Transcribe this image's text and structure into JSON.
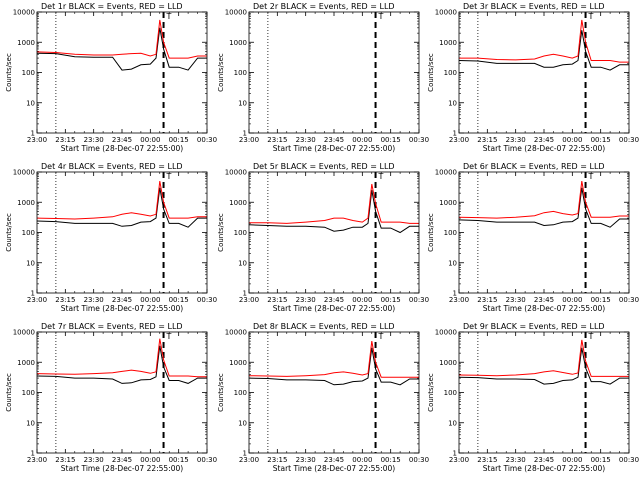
{
  "chart_data": [
    {
      "type": "line",
      "title": "Det 1r BLACK = Events, RED = LLD",
      "xlabel": "Start Time (28-Dec-07 22:55:00)",
      "ylabel": "Counts/sec",
      "yscale": "log",
      "ylim": [
        1,
        10000
      ],
      "xlim": [
        "23:00",
        "00:30"
      ],
      "xtick_labels": [
        "23:00",
        "23:15",
        "23:30",
        "23:45",
        "00:00",
        "00:15",
        "00:30"
      ],
      "ytick_labels": [
        "1",
        "10",
        "100",
        "1000",
        "10000"
      ],
      "grid": false,
      "vlines": [
        {
          "x": "23:10",
          "style": "dotted"
        },
        {
          "x": "00:07",
          "style": "dashed"
        }
      ],
      "marker_text": "T",
      "x": [
        "23:00",
        "23:10",
        "23:20",
        "23:30",
        "23:40",
        "23:45",
        "23:50",
        "23:55",
        "00:00",
        "00:03",
        "00:05",
        "00:07",
        "00:10",
        "00:15",
        "00:20",
        "00:25",
        "00:30"
      ],
      "series": [
        {
          "name": "BLACK = Events",
          "color": "#000000",
          "values": [
            430,
            420,
            330,
            320,
            320,
            120,
            130,
            180,
            190,
            300,
            3000,
            600,
            150,
            150,
            120,
            300,
            300
          ]
        },
        {
          "name": "RED = LLD",
          "color": "#ff0000",
          "values": [
            480,
            460,
            400,
            380,
            380,
            400,
            420,
            430,
            350,
            400,
            5500,
            1000,
            300,
            300,
            300,
            350,
            350
          ]
        }
      ]
    },
    {
      "type": "line",
      "title": "Det 2r BLACK = Events, RED = LLD",
      "xlabel": "Start Time (28-Dec-07 22:55:00)",
      "ylabel": "Counts/sec",
      "yscale": "log",
      "ylim": [
        1,
        10000
      ],
      "xlim": [
        "23:00",
        "00:30"
      ],
      "xtick_labels": [
        "23:00",
        "23:15",
        "23:30",
        "23:45",
        "00:00",
        "00:15",
        "00:30"
      ],
      "ytick_labels": [
        "1",
        "10",
        "100",
        "1000",
        "10000"
      ],
      "grid": false,
      "vlines": [
        {
          "x": "23:10",
          "style": "dotted"
        },
        {
          "x": "00:07",
          "style": "dashed"
        }
      ],
      "marker_text": "T",
      "x": [],
      "series": []
    },
    {
      "type": "line",
      "title": "Det 3r BLACK = Events, RED = LLD",
      "xlabel": "Start Time (28-Dec-07 22:55:00)",
      "ylabel": "Counts/sec",
      "yscale": "log",
      "ylim": [
        1,
        10000
      ],
      "xlim": [
        "23:00",
        "00:30"
      ],
      "xtick_labels": [
        "23:00",
        "23:15",
        "23:30",
        "23:45",
        "00:00",
        "00:15",
        "00:30"
      ],
      "ytick_labels": [
        "1",
        "10",
        "100",
        "1000",
        "10000"
      ],
      "grid": false,
      "vlines": [
        {
          "x": "23:10",
          "style": "dotted"
        },
        {
          "x": "00:07",
          "style": "dashed"
        }
      ],
      "marker_text": "T",
      "x": [
        "23:00",
        "23:10",
        "23:20",
        "23:30",
        "23:40",
        "23:45",
        "23:50",
        "23:55",
        "00:00",
        "00:03",
        "00:05",
        "00:07",
        "00:10",
        "00:15",
        "00:20",
        "00:25",
        "00:30"
      ],
      "series": [
        {
          "name": "BLACK = Events",
          "color": "#000000",
          "values": [
            250,
            240,
            200,
            200,
            200,
            150,
            150,
            180,
            190,
            250,
            2500,
            500,
            150,
            150,
            120,
            180,
            180
          ]
        },
        {
          "name": "RED = LLD",
          "color": "#ff0000",
          "values": [
            300,
            300,
            270,
            260,
            280,
            350,
            400,
            350,
            300,
            350,
            5500,
            1000,
            250,
            250,
            250,
            220,
            220
          ]
        }
      ]
    },
    {
      "type": "line",
      "title": "Det 4r BLACK = Events, RED = LLD",
      "xlabel": "Start Time (28-Dec-07 22:55:00)",
      "ylabel": "Counts/sec",
      "yscale": "log",
      "ylim": [
        1,
        10000
      ],
      "xlim": [
        "23:00",
        "00:30"
      ],
      "xtick_labels": [
        "23:00",
        "23:15",
        "23:30",
        "23:45",
        "00:00",
        "00:15",
        "00:30"
      ],
      "ytick_labels": [
        "1",
        "10",
        "100",
        "1000",
        "10000"
      ],
      "grid": false,
      "vlines": [
        {
          "x": "23:10",
          "style": "dotted"
        },
        {
          "x": "00:07",
          "style": "dashed"
        }
      ],
      "marker_text": "T",
      "x": [
        "23:00",
        "23:10",
        "23:20",
        "23:30",
        "23:40",
        "23:45",
        "23:50",
        "23:55",
        "00:00",
        "00:03",
        "00:05",
        "00:07",
        "00:10",
        "00:15",
        "00:20",
        "00:25",
        "00:30"
      ],
      "series": [
        {
          "name": "BLACK = Events",
          "color": "#000000",
          "values": [
            240,
            230,
            200,
            200,
            200,
            160,
            170,
            220,
            230,
            300,
            3000,
            600,
            200,
            200,
            150,
            300,
            300
          ]
        },
        {
          "name": "RED = LLD",
          "color": "#ff0000",
          "values": [
            300,
            290,
            280,
            300,
            330,
            400,
            450,
            400,
            350,
            400,
            5000,
            1000,
            300,
            300,
            300,
            330,
            330
          ]
        }
      ]
    },
    {
      "type": "line",
      "title": "Det 5r BLACK = Events, RED = LLD",
      "xlabel": "Start Time (28-Dec-07 22:55:00)",
      "ylabel": "Counts/sec",
      "yscale": "log",
      "ylim": [
        1,
        10000
      ],
      "xlim": [
        "23:00",
        "00:30"
      ],
      "xtick_labels": [
        "23:00",
        "23:15",
        "23:30",
        "23:45",
        "00:00",
        "00:15",
        "00:30"
      ],
      "ytick_labels": [
        "1",
        "10",
        "100",
        "1000",
        "10000"
      ],
      "grid": false,
      "vlines": [
        {
          "x": "23:10",
          "style": "dotted"
        },
        {
          "x": "00:07",
          "style": "dashed"
        }
      ],
      "marker_text": "T",
      "x": [
        "23:00",
        "23:10",
        "23:20",
        "23:30",
        "23:40",
        "23:45",
        "23:50",
        "23:55",
        "00:00",
        "00:03",
        "00:05",
        "00:07",
        "00:10",
        "00:15",
        "00:20",
        "00:25",
        "00:30"
      ],
      "series": [
        {
          "name": "BLACK = Events",
          "color": "#000000",
          "values": [
            180,
            170,
            160,
            160,
            150,
            110,
            120,
            150,
            150,
            200,
            2500,
            500,
            140,
            140,
            100,
            160,
            160
          ]
        },
        {
          "name": "RED = LLD",
          "color": "#ff0000",
          "values": [
            210,
            210,
            200,
            220,
            250,
            300,
            300,
            250,
            220,
            300,
            4000,
            900,
            220,
            220,
            220,
            200,
            200
          ]
        }
      ]
    },
    {
      "type": "line",
      "title": "Det 6r BLACK = Events, RED = LLD",
      "xlabel": "Start Time (28-Dec-07 22:55:00)",
      "ylabel": "Counts/sec",
      "yscale": "log",
      "ylim": [
        1,
        10000
      ],
      "xlim": [
        "23:00",
        "00:30"
      ],
      "xtick_labels": [
        "23:00",
        "23:15",
        "23:30",
        "23:45",
        "00:00",
        "00:15",
        "00:30"
      ],
      "ytick_labels": [
        "1",
        "10",
        "100",
        "1000",
        "10000"
      ],
      "grid": false,
      "vlines": [
        {
          "x": "23:10",
          "style": "dotted"
        },
        {
          "x": "00:07",
          "style": "dashed"
        }
      ],
      "marker_text": "T",
      "x": [
        "23:00",
        "23:10",
        "23:20",
        "23:30",
        "23:40",
        "23:45",
        "23:50",
        "23:55",
        "00:00",
        "00:03",
        "00:05",
        "00:07",
        "00:10",
        "00:15",
        "00:20",
        "00:25",
        "00:30"
      ],
      "series": [
        {
          "name": "BLACK = Events",
          "color": "#000000",
          "values": [
            260,
            250,
            220,
            220,
            220,
            170,
            180,
            220,
            230,
            300,
            3000,
            600,
            200,
            200,
            150,
            280,
            280
          ]
        },
        {
          "name": "RED = LLD",
          "color": "#ff0000",
          "values": [
            320,
            310,
            300,
            320,
            360,
            450,
            500,
            420,
            380,
            420,
            5000,
            1000,
            320,
            320,
            320,
            350,
            350
          ]
        }
      ]
    },
    {
      "type": "line",
      "title": "Det 7r BLACK = Events, RED = LLD",
      "xlabel": "Start Time (28-Dec-07 22:55:00)",
      "ylabel": "Counts/sec",
      "yscale": "log",
      "ylim": [
        1,
        10000
      ],
      "xlim": [
        "23:00",
        "00:30"
      ],
      "xtick_labels": [
        "23:00",
        "23:15",
        "23:30",
        "23:45",
        "00:00",
        "00:15",
        "00:30"
      ],
      "ytick_labels": [
        "1",
        "10",
        "100",
        "1000",
        "10000"
      ],
      "grid": false,
      "vlines": [
        {
          "x": "23:10",
          "style": "dotted"
        },
        {
          "x": "00:07",
          "style": "dashed"
        }
      ],
      "marker_text": "T",
      "x": [
        "23:00",
        "23:10",
        "23:20",
        "23:30",
        "23:40",
        "23:45",
        "23:50",
        "23:55",
        "00:00",
        "00:03",
        "00:05",
        "00:07",
        "00:10",
        "00:15",
        "00:20",
        "00:25",
        "00:30"
      ],
      "series": [
        {
          "name": "BLACK = Events",
          "color": "#000000",
          "values": [
            350,
            340,
            300,
            300,
            280,
            200,
            210,
            260,
            270,
            330,
            3500,
            700,
            250,
            250,
            200,
            300,
            300
          ]
        },
        {
          "name": "RED = LLD",
          "color": "#ff0000",
          "values": [
            420,
            410,
            400,
            420,
            450,
            500,
            550,
            500,
            430,
            480,
            6000,
            1200,
            350,
            350,
            350,
            330,
            330
          ]
        }
      ]
    },
    {
      "type": "line",
      "title": "Det 8r BLACK = Events, RED = LLD",
      "xlabel": "Start Time (28-Dec-07 22:55:00)",
      "ylabel": "Counts/sec",
      "yscale": "log",
      "ylim": [
        1,
        10000
      ],
      "xlim": [
        "23:00",
        "00:30"
      ],
      "xtick_labels": [
        "23:00",
        "23:15",
        "23:30",
        "23:45",
        "00:00",
        "00:15",
        "00:30"
      ],
      "ytick_labels": [
        "1",
        "10",
        "100",
        "1000",
        "10000"
      ],
      "grid": false,
      "vlines": [
        {
          "x": "23:10",
          "style": "dotted"
        },
        {
          "x": "00:07",
          "style": "dashed"
        }
      ],
      "marker_text": "T",
      "x": [
        "23:00",
        "23:10",
        "23:20",
        "23:30",
        "23:40",
        "23:45",
        "23:50",
        "23:55",
        "00:00",
        "00:03",
        "00:05",
        "00:07",
        "00:10",
        "00:15",
        "00:20",
        "00:25",
        "00:30"
      ],
      "series": [
        {
          "name": "BLACK = Events",
          "color": "#000000",
          "values": [
            300,
            290,
            260,
            260,
            250,
            180,
            190,
            230,
            240,
            300,
            3000,
            600,
            220,
            220,
            180,
            280,
            280
          ]
        },
        {
          "name": "RED = LLD",
          "color": "#ff0000",
          "values": [
            360,
            350,
            340,
            360,
            390,
            450,
            480,
            430,
            380,
            420,
            5000,
            1000,
            320,
            320,
            320,
            320,
            320
          ]
        }
      ]
    },
    {
      "type": "line",
      "title": "Det 9r BLACK = Events, RED = LLD",
      "xlabel": "Start Time (28-Dec-07 22:55:00)",
      "ylabel": "Counts/sec",
      "yscale": "log",
      "ylim": [
        1,
        10000
      ],
      "xlim": [
        "23:00",
        "00:30"
      ],
      "xtick_labels": [
        "23:00",
        "23:15",
        "23:30",
        "23:45",
        "00:00",
        "00:15",
        "00:30"
      ],
      "ytick_labels": [
        "1",
        "10",
        "100",
        "1000",
        "10000"
      ],
      "grid": false,
      "vlines": [
        {
          "x": "23:10",
          "style": "dotted"
        },
        {
          "x": "00:07",
          "style": "dashed"
        }
      ],
      "marker_text": "T",
      "x": [
        "23:00",
        "23:10",
        "23:20",
        "23:30",
        "23:40",
        "23:45",
        "23:50",
        "23:55",
        "00:00",
        "00:03",
        "00:05",
        "00:07",
        "00:10",
        "00:15",
        "00:20",
        "00:25",
        "00:30"
      ],
      "series": [
        {
          "name": "BLACK = Events",
          "color": "#000000",
          "values": [
            320,
            310,
            280,
            280,
            270,
            190,
            200,
            250,
            260,
            320,
            3000,
            650,
            230,
            230,
            190,
            300,
            300
          ]
        },
        {
          "name": "RED = LLD",
          "color": "#ff0000",
          "values": [
            380,
            370,
            360,
            380,
            420,
            480,
            520,
            460,
            400,
            440,
            5500,
            1100,
            340,
            340,
            340,
            340,
            340
          ]
        }
      ]
    }
  ]
}
